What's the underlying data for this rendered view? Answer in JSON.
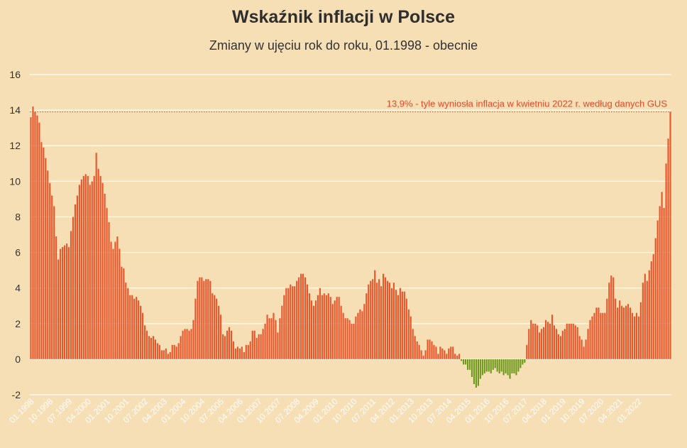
{
  "chart_data": {
    "type": "bar",
    "title": "Wskaźnik inflacji w Polsce",
    "subtitle": "Zmiany w ujęciu rok do roku, 01.1998 - obecnie",
    "xlabel": "",
    "ylabel": "",
    "ylim": [
      -2,
      16
    ],
    "yticks": [
      -2,
      0,
      2,
      4,
      6,
      8,
      10,
      12,
      14,
      16
    ],
    "grid": true,
    "colors": {
      "positive": "#e8562c",
      "negative": "#6e9a1c",
      "reference_line": "#e04a2a"
    },
    "x_tick_labels": [
      "01.1998",
      "10.1998",
      "07.1999",
      "04.2000",
      "01.2001",
      "10.2001",
      "07.2002",
      "04.2003",
      "01.2004",
      "10.2004",
      "07.2005",
      "04.2006",
      "01.2007",
      "10.2007",
      "07.2008",
      "04.2009",
      "01.2010",
      "10.2010",
      "07.2011",
      "04.2012",
      "01.2013",
      "10.2013",
      "07.2014",
      "04.2015",
      "01.2016",
      "10.2016",
      "07.2017",
      "04.2018",
      "01.2019",
      "10.2019",
      "07.2020",
      "04.2021",
      "01.2022"
    ],
    "categories_range": [
      "01.1998",
      "04.2022"
    ],
    "values": [
      13.6,
      14.2,
      13.9,
      13.7,
      13.3,
      12.2,
      11.9,
      11.3,
      10.6,
      9.9,
      9.2,
      8.6,
      6.9,
      5.6,
      6.2,
      6.3,
      6.4,
      6.5,
      6.3,
      7.2,
      8.0,
      8.7,
      9.2,
      9.8,
      10.1,
      10.3,
      10.4,
      10.3,
      9.8,
      10.0,
      10.3,
      11.6,
      10.7,
      10.3,
      9.9,
      9.3,
      8.5,
      7.7,
      6.6,
      6.2,
      6.6,
      6.9,
      6.2,
      5.2,
      5.1,
      4.3,
      4.0,
      3.6,
      3.6,
      3.4,
      3.5,
      3.3,
      3.0,
      2.6,
      1.9,
      1.6,
      1.3,
      1.2,
      1.3,
      1.1,
      0.9,
      0.8,
      0.5,
      0.5,
      0.6,
      0.3,
      0.4,
      0.8,
      0.8,
      0.7,
      0.9,
      1.3,
      1.6,
      1.7,
      1.7,
      1.6,
      1.7,
      2.2,
      3.4,
      4.4,
      4.6,
      4.6,
      4.4,
      4.5,
      4.5,
      4.4,
      3.7,
      3.6,
      3.4,
      3.0,
      2.5,
      1.4,
      1.3,
      1.6,
      1.8,
      1.6,
      1.0,
      0.6,
      0.7,
      0.6,
      0.7,
      0.4,
      0.8,
      0.8,
      1.0,
      1.6,
      1.6,
      1.2,
      1.4,
      1.4,
      1.7,
      2.0,
      2.5,
      2.3,
      2.3,
      2.6,
      2.2,
      1.5,
      2.3,
      3.0,
      3.6,
      4.0,
      4.0,
      4.2,
      4.1,
      4.1,
      4.4,
      4.6,
      4.8,
      4.8,
      4.6,
      4.2,
      3.7,
      3.3,
      3.0,
      3.3,
      3.6,
      4.0,
      3.6,
      3.7,
      3.6,
      3.7,
      3.5,
      3.1,
      3.3,
      3.5,
      3.5,
      3.0,
      2.6,
      2.3,
      2.3,
      2.2,
      2.0,
      2.0,
      2.4,
      2.6,
      2.8,
      2.7,
      3.1,
      3.7,
      4.2,
      4.4,
      4.5,
      5.0,
      4.3,
      4.5,
      4.1,
      4.8,
      4.6,
      4.4,
      4.3,
      4.0,
      4.3,
      3.9,
      3.6,
      4.0,
      3.8,
      3.8,
      3.4,
      2.8,
      2.4,
      1.7,
      1.3,
      1.0,
      0.8,
      0.5,
      0.2,
      0.5,
      1.1,
      1.1,
      1.0,
      0.8,
      0.7,
      0.3,
      0.7,
      0.6,
      0.5,
      0.3,
      0.6,
      0.7,
      0.7,
      0.3,
      0.2,
      0.3,
      -0.1,
      -0.3,
      -0.3,
      -0.6,
      -0.6,
      -1.0,
      -1.4,
      -1.6,
      -1.5,
      -1.1,
      -0.9,
      -0.8,
      -0.7,
      -0.7,
      -0.8,
      -0.6,
      -0.5,
      -0.7,
      -0.8,
      -0.7,
      -0.9,
      -0.8,
      -0.9,
      -1.1,
      -0.8,
      -0.8,
      -0.9,
      -0.7,
      -0.5,
      -0.3,
      -0.2,
      0.8,
      1.7,
      2.2,
      2.0,
      2.0,
      1.9,
      1.5,
      1.7,
      1.8,
      2.2,
      2.1,
      2.0,
      2.5,
      1.9,
      1.7,
      1.4,
      1.3,
      1.6,
      1.7,
      2.0,
      2.0,
      2.0,
      2.0,
      1.9,
      1.8,
      1.3,
      1.1,
      0.7,
      1.1,
      1.7,
      2.2,
      2.4,
      2.6,
      2.9,
      2.9,
      2.6,
      2.6,
      2.6,
      3.4,
      4.3,
      4.7,
      4.6,
      3.4,
      2.9,
      3.3,
      3.0,
      2.9,
      3.0,
      3.1,
      2.9,
      2.6,
      2.4,
      2.6,
      2.4,
      3.2,
      4.3,
      4.8,
      4.4,
      5.0,
      5.5,
      5.9,
      6.8,
      7.8,
      8.6,
      9.4,
      8.5,
      11.0,
      12.4,
      13.9
    ],
    "annotations": [
      {
        "text": "13,9% - tyle wyniosła inflacja w kwietniu 2022 r. według danych GUS",
        "value": 13.9
      }
    ]
  }
}
